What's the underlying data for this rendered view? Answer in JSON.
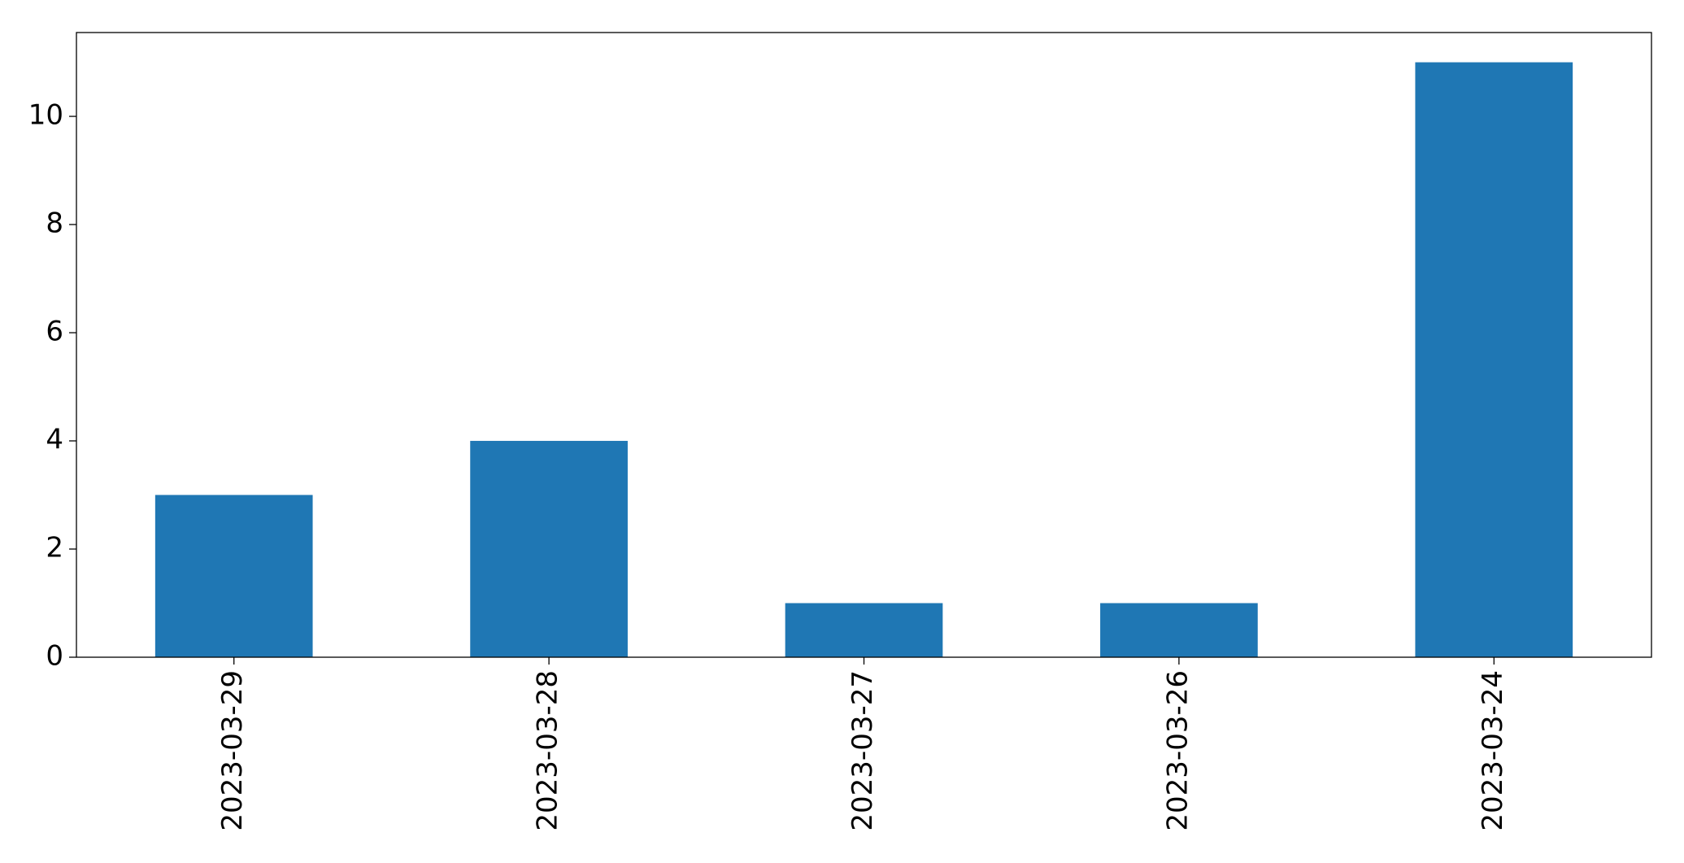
{
  "chart_data": {
    "type": "bar",
    "categories": [
      "2023-03-29",
      "2023-03-28",
      "2023-03-27",
      "2023-03-26",
      "2023-03-24"
    ],
    "values": [
      3,
      4,
      1,
      1,
      11
    ],
    "color": "#1f77b4",
    "ylim": [
      0,
      11.55
    ],
    "yticks": [
      0,
      2,
      4,
      6,
      8,
      10
    ],
    "grid": false
  }
}
